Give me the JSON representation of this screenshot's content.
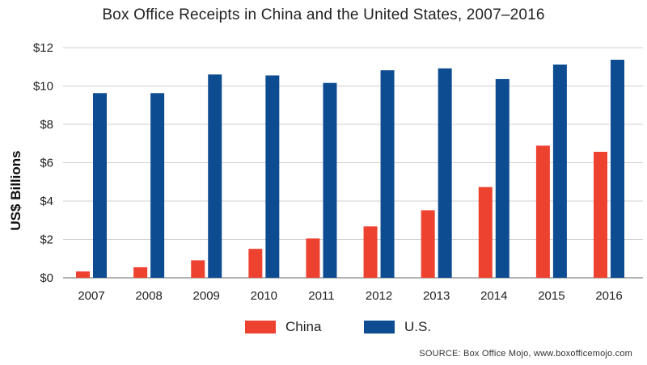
{
  "chart_data": {
    "type": "bar",
    "title": "Box Office Receipts in China and the United States, 2007–2016",
    "ylabel": "US$ Billions",
    "xlabel": "",
    "categories": [
      "2007",
      "2008",
      "2009",
      "2010",
      "2011",
      "2012",
      "2013",
      "2014",
      "2015",
      "2016"
    ],
    "series": [
      {
        "name": "China",
        "color": "#EE4231",
        "values": [
          0.33,
          0.55,
          0.91,
          1.51,
          2.05,
          2.68,
          3.52,
          4.73,
          6.89,
          6.57
        ]
      },
      {
        "name": "U.S.",
        "color": "#0E4C92",
        "values": [
          9.63,
          9.63,
          10.6,
          10.55,
          10.16,
          10.82,
          10.92,
          10.36,
          11.12,
          11.37
        ]
      }
    ],
    "ylim": [
      0,
      12
    ],
    "yticks": [
      0,
      2,
      4,
      6,
      8,
      10,
      12
    ],
    "ytick_labels": [
      "$0",
      "$2",
      "$4",
      "$6",
      "$8",
      "$10",
      "$12"
    ],
    "grid": true,
    "legend_position": "bottom",
    "source": "SOURCE: Box Office Mojo, www.boxofficemojo.com"
  }
}
